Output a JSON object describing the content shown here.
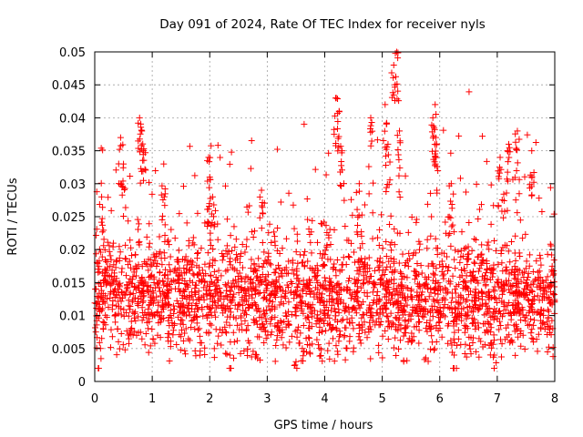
{
  "chart_data": {
    "type": "scatter",
    "title": "Day 091 of 2024, Rate Of TEC Index for receiver nyls",
    "xlabel": "GPS time / hours",
    "ylabel": "ROTI / TECUs",
    "xlim": [
      0,
      8
    ],
    "ylim": [
      0,
      0.05
    ],
    "x_ticks": [
      "0",
      "1",
      "2",
      "3",
      "4",
      "5",
      "6",
      "7",
      "8"
    ],
    "y_ticks": [
      "0",
      "0.005",
      "0.01",
      "0.015",
      "0.02",
      "0.025",
      "0.03",
      "0.035",
      "0.04",
      "0.045",
      "0.05"
    ],
    "grid": true,
    "marker": "+",
    "color": "#ff0000",
    "series": [
      {
        "name": "ROTI",
        "description": "dense scatter of ROTI samples",
        "typical_band": [
          0.007,
          0.018
        ],
        "notable_points": [
          {
            "x": 0.12,
            "y": 0.028
          },
          {
            "x": 0.45,
            "y": 0.037
          },
          {
            "x": 0.5,
            "y": 0.033
          },
          {
            "x": 0.78,
            "y": 0.04
          },
          {
            "x": 0.82,
            "y": 0.038
          },
          {
            "x": 0.85,
            "y": 0.035
          },
          {
            "x": 1.2,
            "y": 0.033
          },
          {
            "x": 1.98,
            "y": 0.034
          },
          {
            "x": 2.0,
            "y": 0.031
          },
          {
            "x": 2.05,
            "y": 0.028
          },
          {
            "x": 2.35,
            "y": 0.004
          },
          {
            "x": 2.9,
            "y": 0.029
          },
          {
            "x": 3.5,
            "y": 0.003
          },
          {
            "x": 4.2,
            "y": 0.043
          },
          {
            "x": 4.25,
            "y": 0.041
          },
          {
            "x": 4.3,
            "y": 0.035
          },
          {
            "x": 4.6,
            "y": 0.03
          },
          {
            "x": 4.8,
            "y": 0.04
          },
          {
            "x": 5.05,
            "y": 0.042
          },
          {
            "x": 5.1,
            "y": 0.036
          },
          {
            "x": 5.2,
            "y": 0.048
          },
          {
            "x": 5.25,
            "y": 0.05
          },
          {
            "x": 5.3,
            "y": 0.038
          },
          {
            "x": 5.88,
            "y": 0.04
          },
          {
            "x": 5.92,
            "y": 0.042
          },
          {
            "x": 5.93,
            "y": 0.037
          },
          {
            "x": 6.2,
            "y": 0.03
          },
          {
            "x": 7.05,
            "y": 0.034
          },
          {
            "x": 7.2,
            "y": 0.036
          },
          {
            "x": 7.35,
            "y": 0.038
          },
          {
            "x": 7.6,
            "y": 0.035
          },
          {
            "x": 6.95,
            "y": 0.004
          },
          {
            "x": 6.25,
            "y": 0.004
          },
          {
            "x": 0.1,
            "y": 0.005
          }
        ]
      }
    ]
  }
}
